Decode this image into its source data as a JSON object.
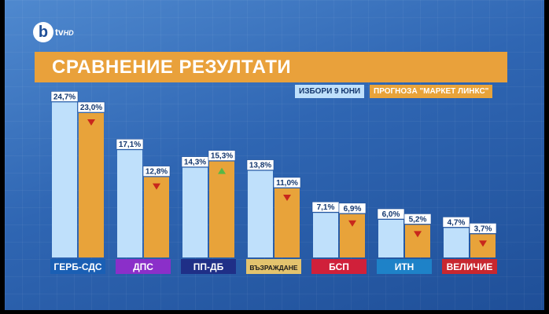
{
  "logo": {
    "letter": "b",
    "text": "tv",
    "suffix": "HD"
  },
  "title": "СРАВНЕНИЕ РЕЗУЛТАТИ",
  "colors": {
    "series_a": "#bfe0fb",
    "series_b": "#e8a33a",
    "up": "#57b846",
    "down": "#c8271c"
  },
  "chart_data": {
    "type": "bar",
    "title": "СРАВНЕНИЕ РЕЗУЛТАТИ",
    "categories": [
      "ГЕРБ-СДС",
      "ДПС",
      "ПП-ДБ",
      "ВЪЗРАЖДАНЕ",
      "БСП",
      "ИТН",
      "ВЕЛИЧИЕ"
    ],
    "category_colors": [
      "#1a5fb4",
      "#8b2fc9",
      "#1f2f87",
      "#e3c36e",
      "#d0203a",
      "#1e82c8",
      "#c8272f"
    ],
    "category_text_colors": [
      "#ffffff",
      "#ffffff",
      "#ffffff",
      "#1a1a1a",
      "#ffffff",
      "#ffffff",
      "#ffffff"
    ],
    "series": [
      {
        "name": "ИЗБОРИ 9 ЮНИ",
        "values": [
          24.7,
          17.1,
          14.3,
          13.8,
          7.1,
          6.0,
          4.7
        ],
        "labels": [
          "24,7%",
          "17,1%",
          "14,3%",
          "13,8%",
          "7,1%",
          "6,0%",
          "4,7%"
        ]
      },
      {
        "name": "ПРОГНОЗА \"МАРКЕТ ЛИНКС\"",
        "values": [
          23.0,
          12.8,
          15.3,
          11.0,
          6.9,
          5.2,
          3.7
        ],
        "labels": [
          "23,0%",
          "12,8%",
          "15,3%",
          "11,0%",
          "6,9%",
          "5,2%",
          "3,7%"
        ],
        "trend": [
          "down",
          "down",
          "up",
          "down",
          "down",
          "down",
          "down"
        ]
      }
    ],
    "ylim": [
      0,
      25
    ],
    "legend": "top-right",
    "grid": false
  }
}
